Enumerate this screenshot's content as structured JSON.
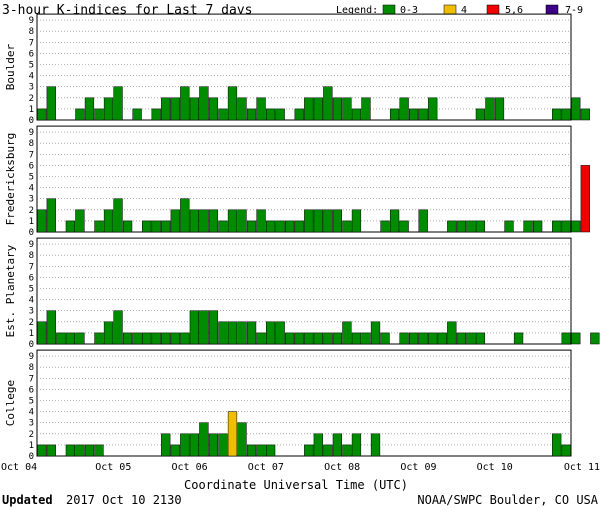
{
  "chart_data": {
    "type": "bar",
    "title": "3-hour K-indices for Last 7 days",
    "legend": {
      "label": "Legend:",
      "placement": "top-right",
      "entries": [
        {
          "label": "0-3",
          "color": "#008c00"
        },
        {
          "label": "4",
          "color": "#f0be00"
        },
        {
          "label": "5,6",
          "color": "#f00000"
        },
        {
          "label": "7-9",
          "color": "#3c0088"
        }
      ]
    },
    "xlabel": "Coordinate Universal Time (UTC)",
    "x_ticks": [
      "Oct 04",
      "Oct 05",
      "Oct 06",
      "Oct 07",
      "Oct 08",
      "Oct 09",
      "Oct 10",
      "Oct 11"
    ],
    "ylim": [
      0,
      9
    ],
    "y_ticks": [
      "0",
      "1",
      "2",
      "3",
      "4",
      "5",
      "6",
      "7",
      "8",
      "9"
    ],
    "grid": "horizontal dotted",
    "panels": [
      {
        "name": "Boulder",
        "values": [
          1,
          3,
          0,
          0,
          1,
          2,
          1,
          2,
          3,
          0,
          1,
          0,
          1,
          2,
          2,
          3,
          2,
          3,
          2,
          1,
          3,
          2,
          1,
          2,
          1,
          1,
          0,
          1,
          2,
          2,
          3,
          2,
          2,
          1,
          2,
          0,
          0,
          1,
          2,
          1,
          1,
          2,
          0,
          0,
          0,
          0,
          1,
          2,
          2,
          0,
          0,
          0,
          0,
          0,
          1,
          1,
          2,
          1,
          0
        ]
      },
      {
        "name": "Fredericksburg",
        "values": [
          2,
          3,
          0,
          1,
          2,
          0,
          1,
          2,
          3,
          1,
          0,
          1,
          1,
          1,
          2,
          3,
          2,
          2,
          2,
          1,
          2,
          2,
          1,
          2,
          1,
          1,
          1,
          1,
          2,
          2,
          2,
          2,
          1,
          2,
          0,
          0,
          1,
          2,
          1,
          0,
          2,
          0,
          0,
          1,
          1,
          1,
          1,
          0,
          0,
          1,
          0,
          1,
          1,
          0,
          1,
          1,
          1,
          6,
          0
        ]
      },
      {
        "name": "Est. Planetary",
        "values": [
          2,
          3,
          1,
          1,
          1,
          0,
          1,
          2,
          3,
          1,
          1,
          1,
          1,
          1,
          1,
          1,
          3,
          3,
          3,
          2,
          2,
          2,
          2,
          1,
          2,
          2,
          1,
          1,
          1,
          1,
          1,
          1,
          2,
          1,
          1,
          2,
          1,
          0,
          1,
          1,
          1,
          1,
          1,
          2,
          1,
          1,
          1,
          0,
          0,
          0,
          1,
          0,
          0,
          0,
          0,
          1,
          1,
          0,
          1
        ]
      },
      {
        "name": "College",
        "values": [
          1,
          1,
          0,
          1,
          1,
          1,
          1,
          0,
          0,
          0,
          0,
          0,
          0,
          2,
          1,
          2,
          2,
          3,
          2,
          2,
          4,
          3,
          1,
          1,
          1,
          0,
          0,
          0,
          1,
          2,
          1,
          2,
          1,
          2,
          0,
          2,
          0,
          0,
          0,
          0,
          0,
          0,
          0,
          0,
          0,
          0,
          0,
          0,
          0,
          0,
          0,
          0,
          0,
          0,
          2,
          1,
          0,
          0,
          0
        ]
      }
    ]
  },
  "footer": {
    "updated_label": "Updated",
    "updated_value": "2017 Oct 10 2130",
    "source": "NOAA/SWPC Boulder, CO USA"
  }
}
